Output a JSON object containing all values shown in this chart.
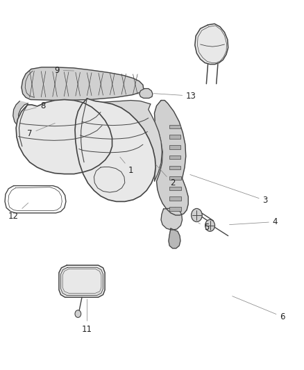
{
  "background_color": "#ffffff",
  "fig_width": 4.38,
  "fig_height": 5.33,
  "dpi": 100,
  "line_color": "#444444",
  "fill_light": "#e8e8e8",
  "fill_mid": "#d0d0d0",
  "fill_dark": "#b8b8b8",
  "text_color": "#222222",
  "font_size": 8.5,
  "label_positions": {
    "1": [
      0.44,
      0.535,
      0.5,
      0.55
    ],
    "2": [
      0.575,
      0.5,
      0.6,
      0.52
    ],
    "3": [
      0.87,
      0.455,
      0.785,
      0.48
    ],
    "4": [
      0.905,
      0.405,
      0.815,
      0.415
    ],
    "5": [
      0.68,
      0.385,
      0.7,
      0.4
    ],
    "6": [
      0.935,
      0.145,
      0.855,
      0.195
    ],
    "7": [
      0.105,
      0.645,
      0.22,
      0.685
    ],
    "8": [
      0.15,
      0.72,
      0.175,
      0.745
    ],
    "9": [
      0.2,
      0.81,
      0.285,
      0.815
    ],
    "11": [
      0.29,
      0.11,
      0.305,
      0.185
    ],
    "12": [
      0.055,
      0.42,
      0.1,
      0.46
    ],
    "13": [
      0.635,
      0.745,
      0.595,
      0.755
    ]
  }
}
